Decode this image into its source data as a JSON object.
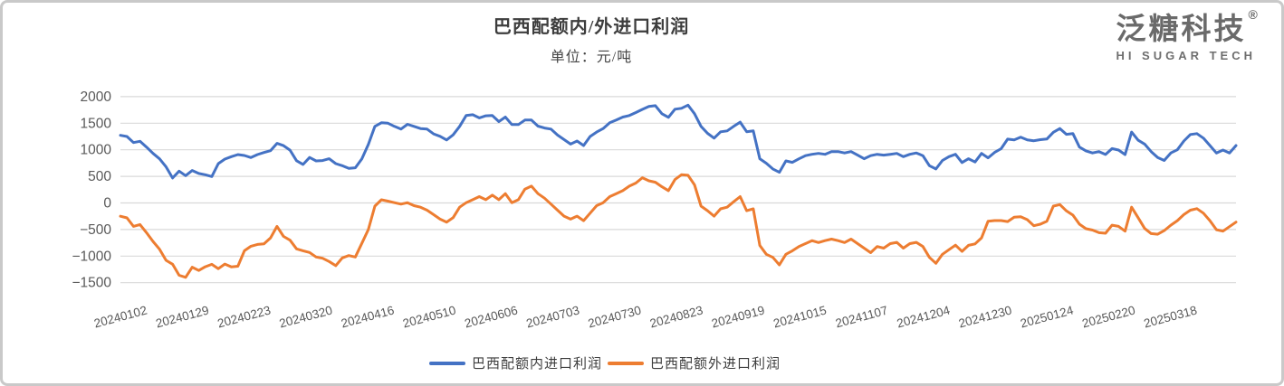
{
  "header": {
    "title": "巴西配额内/外进口利润",
    "subtitle": "单位：元/吨"
  },
  "logo": {
    "name": "泛糖科技",
    "registered": "®",
    "tagline": "HI SUGAR TECH"
  },
  "legend": [
    {
      "label": "巴西配额内进口利润",
      "color": "#4472C4"
    },
    {
      "label": "巴西配额外进口利润",
      "color": "#ED7D31"
    }
  ],
  "chart_data": {
    "type": "line",
    "title": "巴西配额内/外进口利润",
    "unit_label": "单位：元/吨",
    "ylim": [
      -1500,
      2000
    ],
    "y_ticks": [
      2000,
      1500,
      1000,
      500,
      0,
      -500,
      -1000,
      -1500
    ],
    "grid": "horizontal",
    "legend_position": "bottom",
    "colors": {
      "grid": "#d9d9d9",
      "axis_text": "#595959"
    },
    "x_tick_labels": [
      "20240102",
      "20240129",
      "20240223",
      "20240320",
      "20240416",
      "20240510",
      "20240606",
      "20240703",
      "20240730",
      "20240823",
      "20240919",
      "20241015",
      "20241107",
      "20241204",
      "20241230",
      "20250124",
      "20250220",
      "20250318"
    ],
    "series": [
      {
        "name": "巴西配额内进口利润",
        "color": "#4472C4",
        "values": [
          1272,
          1250,
          1136,
          1160,
          1051,
          932,
          830,
          678,
          470,
          599,
          514,
          610,
          554,
          531,
          497,
          740,
          825,
          870,
          910,
          893,
          853,
          910,
          949,
          983,
          1120,
          1079,
          993,
          795,
          724,
          856,
          790,
          797,
          831,
          740,
          700,
          650,
          661,
          830,
          1100,
          1441,
          1509,
          1500,
          1441,
          1390,
          1480,
          1441,
          1400,
          1390,
          1300,
          1254,
          1186,
          1280,
          1440,
          1644,
          1660,
          1600,
          1640,
          1644,
          1530,
          1616,
          1475,
          1475,
          1560,
          1560,
          1446,
          1410,
          1390,
          1277,
          1192,
          1107,
          1165,
          1080,
          1250,
          1334,
          1400,
          1509,
          1559,
          1616,
          1644,
          1700,
          1760,
          1814,
          1830,
          1678,
          1610,
          1763,
          1780,
          1840,
          1678,
          1441,
          1310,
          1220,
          1339,
          1356,
          1441,
          1520,
          1340,
          1356,
          831,
          746,
          640,
          576,
          790,
          763,
          830,
          890,
          915,
          932,
          915,
          966,
          966,
          940,
          966,
          900,
          831,
          890,
          915,
          900,
          915,
          932,
          870,
          915,
          940,
          890,
          700,
          640,
          800,
          870,
          915,
          760,
          831,
          770,
          932,
          848,
          950,
          1020,
          1200,
          1186,
          1237,
          1186,
          1170,
          1190,
          1203,
          1330,
          1400,
          1290,
          1305,
          1051,
          980,
          940,
          966,
          912,
          1022,
          995,
          910,
          1334,
          1180,
          1107,
          966,
          855,
          800,
          940,
          1000,
          1165,
          1288,
          1305,
          1220,
          1080,
          938,
          995,
          940,
          1080
        ]
      },
      {
        "name": "巴西配额外进口利润",
        "color": "#ED7D31",
        "values": [
          -250,
          -280,
          -440,
          -406,
          -560,
          -725,
          -870,
          -1080,
          -1153,
          -1360,
          -1400,
          -1210,
          -1270,
          -1200,
          -1155,
          -1237,
          -1150,
          -1203,
          -1190,
          -900,
          -814,
          -780,
          -770,
          -660,
          -441,
          -630,
          -700,
          -864,
          -900,
          -932,
          -1017,
          -1040,
          -1102,
          -1180,
          -1034,
          -990,
          -1017,
          -760,
          -500,
          -60,
          60,
          34,
          5,
          -22,
          5,
          -51,
          -80,
          -136,
          -220,
          -305,
          -361,
          -277,
          -80,
          5,
          62,
          119,
          62,
          147,
          62,
          175,
          5,
          62,
          260,
          317,
          175,
          90,
          -22,
          -136,
          -249,
          -305,
          -249,
          -334,
          -192,
          -51,
          5,
          119,
          175,
          232,
          317,
          374,
          475,
          417,
          390,
          305,
          232,
          440,
          530,
          520,
          340,
          -60,
          -147,
          -249,
          -110,
          -80,
          22,
          119,
          -147,
          -110,
          -800,
          -966,
          -1024,
          -1165,
          -966,
          -900,
          -820,
          -766,
          -710,
          -745,
          -710,
          -680,
          -710,
          -745,
          -680,
          -766,
          -851,
          -936,
          -820,
          -851,
          -766,
          -741,
          -851,
          -766,
          -741,
          -820,
          -1024,
          -1136,
          -966,
          -879,
          -795,
          -911,
          -797,
          -770,
          -656,
          -344,
          -332,
          -332,
          -350,
          -268,
          -258,
          -315,
          -429,
          -400,
          -344,
          -60,
          -30,
          -150,
          -230,
          -400,
          -485,
          -510,
          -560,
          -570,
          -419,
          -440,
          -530,
          -80,
          -277,
          -480,
          -576,
          -588,
          -520,
          -419,
          -334,
          -220,
          -136,
          -107,
          -192,
          -334,
          -503,
          -531,
          -446,
          -360
        ]
      }
    ]
  }
}
